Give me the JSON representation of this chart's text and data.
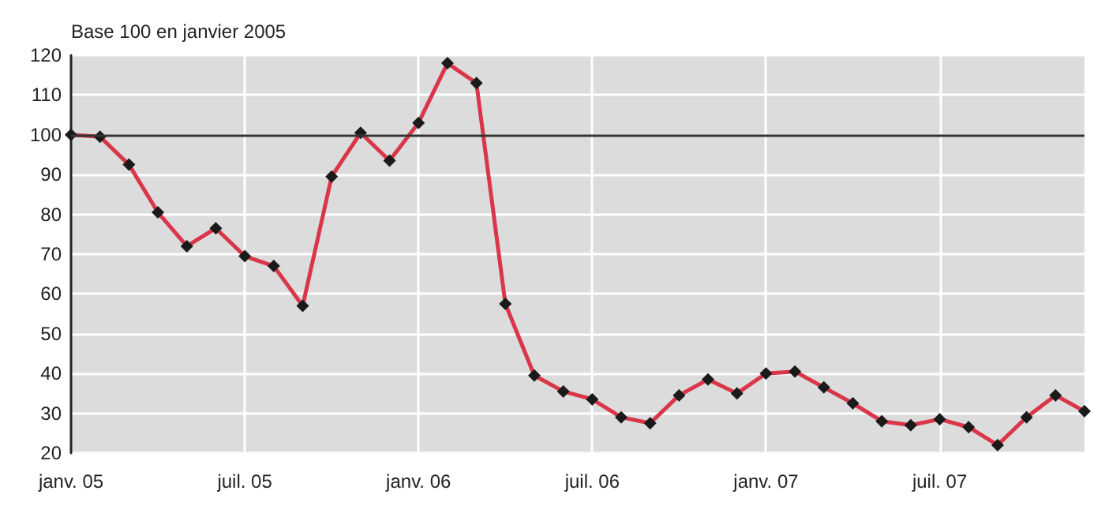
{
  "chart_data": {
    "type": "line",
    "ylabel": "Base 100 en janvier 2005",
    "categories": [
      "janv. 05",
      null,
      null,
      null,
      null,
      null,
      "juil. 05",
      null,
      null,
      null,
      null,
      null,
      "janv. 06",
      null,
      null,
      null,
      null,
      null,
      "juil. 06",
      null,
      null,
      null,
      null,
      null,
      "janv. 07",
      null,
      null,
      null,
      null,
      null,
      "juil. 07",
      null,
      null,
      null,
      null,
      null
    ],
    "series": [
      {
        "color": "#d9364a",
        "values": [
          100,
          99.5,
          92.5,
          80.5,
          72,
          76.5,
          69.5,
          67,
          57,
          89.5,
          100.5,
          93.5,
          103,
          118,
          113,
          57.5,
          39.5,
          35.5,
          33.5,
          29,
          27.5,
          34.5,
          38.5,
          35,
          40,
          40.5,
          36.5,
          32.5,
          28,
          27,
          28.5,
          26.5,
          22,
          29,
          34.5,
          30.5
        ]
      }
    ],
    "ylim": [
      20,
      120
    ],
    "yticks": [
      20,
      30,
      40,
      50,
      60,
      70,
      80,
      90,
      100,
      110,
      120
    ],
    "grid": true,
    "marker": "diamond",
    "line_style": "solid",
    "ref_lines": [
      {
        "axis": "y",
        "value": 100,
        "color": "#333333"
      }
    ]
  }
}
